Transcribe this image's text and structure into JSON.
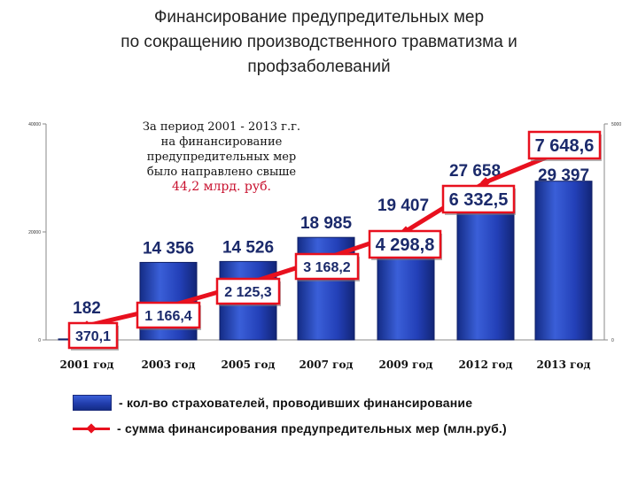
{
  "title_lines": [
    "Финансирование предупредительных мер",
    "по сокращению производственного травматизма и",
    "профзаболеваний"
  ],
  "note": {
    "lines": [
      "За период 2001 - 2013 г.г.",
      "на финансирование",
      "предупредительных мер",
      "было направлено свыше"
    ],
    "amount": "44,2 млрд. руб."
  },
  "legend": {
    "bars": "- кол-во страхователей, проводивших финансирование",
    "line": "- сумма финансирования предупредительных мер (млн.руб.)"
  },
  "colors": {
    "bar": "#2340b8",
    "line": "#e8101e",
    "label_box_border": "#e8101e"
  },
  "chart_data": {
    "type": "bar+line",
    "categories": [
      "2001 год",
      "2003 год",
      "2005 год",
      "2007 год",
      "2009 год",
      "2012 год",
      "2013 год"
    ],
    "series": [
      {
        "values": [
          182,
          14356,
          14526,
          18985,
          19407,
          27658,
          29397
        ],
        "labels": [
          "182",
          "14 356",
          "14 526",
          "18 985",
          "19 407",
          "27 658",
          "29 397"
        ]
      },
      {
        "values": [
          370.1,
          1166.4,
          2125.3,
          3168.2,
          4298.8,
          6332.5,
          7648.6
        ],
        "labels": [
          "370,1",
          "1 166,4",
          "2 125,3",
          "3 168,2",
          "4 298,8",
          "6 332,5",
          "7 648,6"
        ]
      }
    ],
    "y_left": {
      "ticks": [
        "0",
        "20000",
        "40000"
      ],
      "range": [
        0,
        40000
      ]
    },
    "y_right": {
      "ticks": [
        "0",
        "5000"
      ]
    },
    "grid": false,
    "legend_position": "bottom"
  }
}
